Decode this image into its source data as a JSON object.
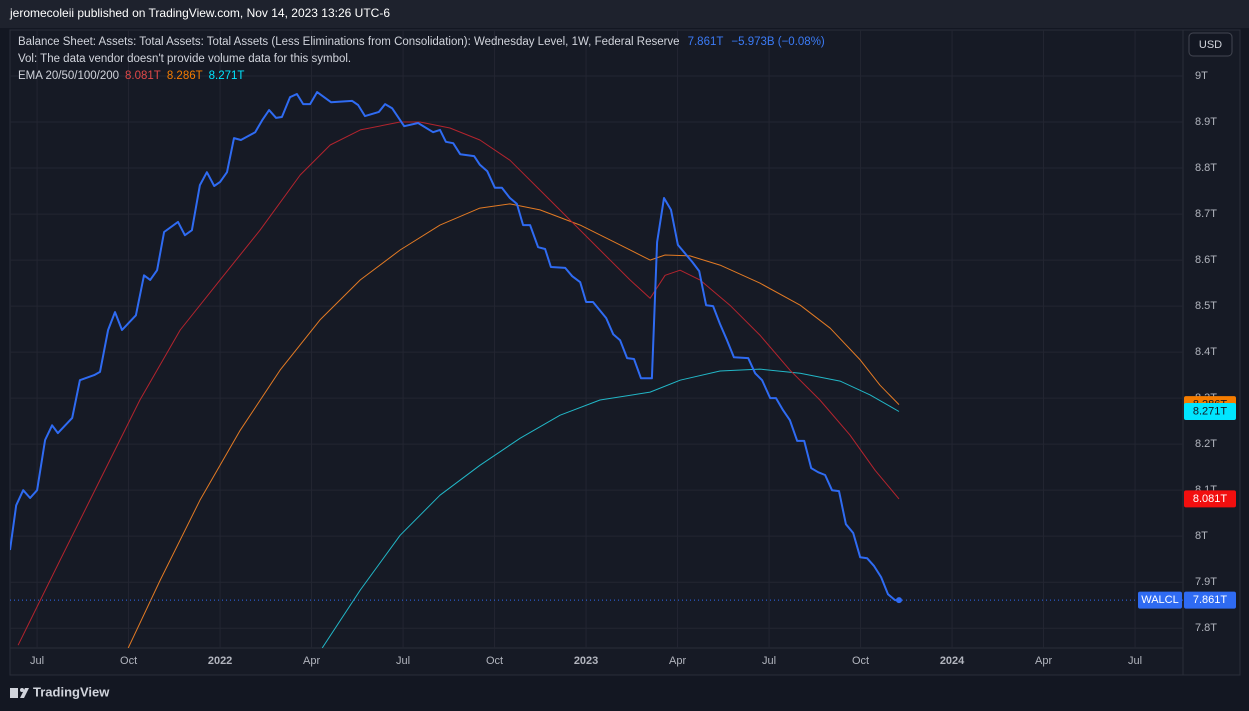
{
  "header": {
    "published": "jeromecoleii published on TradingView.com, Nov 14, 2023 13:26 UTC-6"
  },
  "footer": {
    "brand": "TradingView"
  },
  "chart_data": {
    "type": "line",
    "title": "Balance Sheet: Assets: Total Assets: Total Assets (Less Eliminations from Consolidation): Wednesday Level, 1W, Federal Reserve",
    "change": "−5.973B (−0.08%)",
    "volume_note": "Vol: The data vendor doesn't provide volume data for this symbol.",
    "indicator": "EMA 20/50/100/200",
    "currency": "USD",
    "grid": true,
    "xlim": [
      2021.426,
      2024.631
    ],
    "xticks": [
      {
        "value": 2021.5,
        "label": "Jul"
      },
      {
        "value": 2021.75,
        "label": "Oct"
      },
      2022,
      {
        "value": 2022.25,
        "label": "Apr"
      },
      {
        "value": 2022.5,
        "label": "Jul"
      },
      {
        "value": 2022.75,
        "label": "Oct"
      },
      2023,
      {
        "value": 2023.25,
        "label": "Apr"
      },
      {
        "value": 2023.5,
        "label": "Jul"
      },
      {
        "value": 2023.75,
        "label": "Oct"
      },
      2024,
      {
        "value": 2024.25,
        "label": "Apr"
      },
      {
        "value": 2024.5,
        "label": "Jul"
      }
    ],
    "ylim": [
      7.757,
      9.1
    ],
    "yticks": [
      {
        "value": 7.8,
        "label": "7.8T"
      },
      {
        "value": 7.9,
        "label": "7.9T"
      },
      {
        "value": 8.0,
        "label": "8T"
      },
      {
        "value": 8.1,
        "label": "8.1T"
      },
      {
        "value": 8.2,
        "label": "8.2T"
      },
      {
        "value": 8.3,
        "label": "8.3T"
      },
      {
        "value": 8.4,
        "label": "8.4T"
      },
      {
        "value": 8.5,
        "label": "8.5T"
      },
      {
        "value": 8.6,
        "label": "8.6T"
      },
      {
        "value": 8.7,
        "label": "8.7T"
      },
      {
        "value": 8.8,
        "label": "8.8T"
      },
      {
        "value": 8.9,
        "label": "8.9T"
      },
      {
        "value": 9.0,
        "label": "9T"
      }
    ],
    "series": [
      {
        "name": "WALCL",
        "color": "#2f6bf2",
        "width": 2,
        "last_label": "7.861T",
        "x": [
          2021.426,
          2021.443,
          2021.462,
          2021.481,
          2021.5,
          2021.522,
          2021.541,
          2021.557,
          2021.596,
          2021.617,
          2021.656,
          2021.672,
          2021.694,
          2021.713,
          2021.732,
          2021.77,
          2021.792,
          2021.809,
          2021.828,
          2021.847,
          2021.885,
          2021.904,
          2021.923,
          2021.945,
          2021.964,
          2021.984,
          2022.0,
          2022.019,
          2022.038,
          2022.057,
          2022.096,
          2022.115,
          2022.134,
          2022.153,
          2022.169,
          2022.191,
          2022.21,
          2022.227,
          2022.246,
          2022.265,
          2022.303,
          2022.361,
          2022.377,
          2022.396,
          2022.434,
          2022.451,
          2022.47,
          2022.503,
          2022.541,
          2022.582,
          2022.601,
          2022.617,
          2022.637,
          2022.656,
          2022.694,
          2022.71,
          2022.73,
          2022.751,
          2022.77,
          2022.792,
          2022.811,
          2022.828,
          2022.847,
          2022.869,
          2022.888,
          2022.904,
          2022.943,
          2022.962,
          2022.984,
          2023.0,
          2023.019,
          2023.055,
          2023.074,
          2023.093,
          2023.112,
          2023.131,
          2023.15,
          2023.18,
          2023.194,
          2023.213,
          2023.232,
          2023.251,
          2023.29,
          2023.309,
          2023.328,
          2023.347,
          2023.366,
          2023.385,
          2023.404,
          2023.443,
          2023.462,
          2023.481,
          2023.503,
          2023.519,
          2023.538,
          2023.557,
          2023.577,
          2023.596,
          2023.615,
          2023.634,
          2023.653,
          2023.672,
          2023.691,
          2023.71,
          2023.73,
          2023.749,
          2023.768,
          2023.787,
          2023.806,
          2023.825,
          2023.844,
          2023.855
        ],
        "values": [
          7.97,
          8.067,
          8.1,
          8.083,
          8.1,
          8.209,
          8.241,
          8.224,
          8.257,
          8.339,
          8.35,
          8.357,
          8.448,
          8.487,
          8.448,
          8.48,
          8.567,
          8.557,
          8.578,
          8.661,
          8.683,
          8.654,
          8.665,
          8.763,
          8.791,
          8.761,
          8.77,
          8.791,
          8.865,
          8.861,
          8.878,
          8.904,
          8.926,
          8.909,
          8.911,
          8.954,
          8.961,
          8.939,
          8.939,
          8.965,
          8.943,
          8.946,
          8.937,
          8.913,
          8.922,
          8.939,
          8.93,
          8.891,
          8.898,
          8.878,
          8.883,
          8.857,
          8.854,
          8.83,
          8.826,
          8.807,
          8.793,
          8.757,
          8.757,
          8.735,
          8.722,
          8.676,
          8.676,
          8.628,
          8.624,
          8.585,
          8.583,
          8.565,
          8.552,
          8.509,
          8.509,
          8.474,
          8.439,
          8.426,
          8.387,
          8.385,
          8.343,
          8.343,
          8.639,
          8.735,
          8.709,
          8.633,
          8.596,
          8.576,
          8.502,
          8.5,
          8.461,
          8.426,
          8.389,
          8.387,
          8.354,
          8.339,
          8.3,
          8.3,
          8.274,
          8.252,
          8.207,
          8.207,
          8.148,
          8.139,
          8.133,
          8.1,
          8.098,
          8.026,
          8.007,
          7.954,
          7.952,
          7.935,
          7.911,
          7.874,
          7.861,
          7.861
        ]
      },
      {
        "color": "#b3242e",
        "width": 1,
        "tag_color": "#f20f0f",
        "tag_text": "#ffffff",
        "last_label": "8.081T",
        "x": [
          2021.448,
          2021.563,
          2021.672,
          2021.781,
          2021.891,
          2022.0,
          2022.109,
          2022.219,
          2022.301,
          2022.383,
          2022.492,
          2022.546,
          2022.628,
          2022.71,
          2022.792,
          2022.874,
          2022.956,
          2023.038,
          2023.12,
          2023.175,
          2023.216,
          2023.257,
          2023.311,
          2023.393,
          2023.475,
          2023.557,
          2023.639,
          2023.721,
          2023.79,
          2023.855
        ],
        "values": [
          7.763,
          7.948,
          8.122,
          8.296,
          8.448,
          8.557,
          8.665,
          8.785,
          8.85,
          8.883,
          8.9,
          8.9,
          8.887,
          8.861,
          8.817,
          8.752,
          8.687,
          8.622,
          8.557,
          8.517,
          8.567,
          8.578,
          8.557,
          8.502,
          8.437,
          8.361,
          8.296,
          8.22,
          8.143,
          8.081
        ]
      },
      {
        "color": "#e27a24",
        "width": 1,
        "tag_color": "#f57c00",
        "tag_text": "#131722",
        "last_label": "8.286T",
        "x": [
          2021.749,
          2021.836,
          2021.945,
          2022.055,
          2022.164,
          2022.273,
          2022.383,
          2022.492,
          2022.601,
          2022.71,
          2022.792,
          2022.874,
          2022.984,
          2023.093,
          2023.175,
          2023.216,
          2023.284,
          2023.366,
          2023.475,
          2023.585,
          2023.667,
          2023.749,
          2023.803,
          2023.855
        ],
        "values": [
          7.757,
          7.904,
          8.078,
          8.23,
          8.361,
          8.47,
          8.557,
          8.622,
          8.676,
          8.713,
          8.722,
          8.709,
          8.676,
          8.633,
          8.6,
          8.611,
          8.609,
          8.589,
          8.55,
          8.502,
          8.452,
          8.383,
          8.328,
          8.286
        ]
      },
      {
        "color": "#22b7c7",
        "width": 1,
        "tag_color": "#00e5ff",
        "tag_text": "#131722",
        "last_label": "8.271T",
        "x": [
          2022.279,
          2022.383,
          2022.492,
          2022.601,
          2022.71,
          2022.82,
          2022.929,
          2023.038,
          2023.175,
          2023.257,
          2023.366,
          2023.475,
          2023.585,
          2023.694,
          2023.776,
          2023.855
        ],
        "values": [
          7.757,
          7.883,
          8.002,
          8.089,
          8.154,
          8.213,
          8.263,
          8.296,
          8.313,
          8.339,
          8.359,
          8.363,
          8.354,
          8.337,
          8.307,
          8.271
        ]
      }
    ]
  }
}
